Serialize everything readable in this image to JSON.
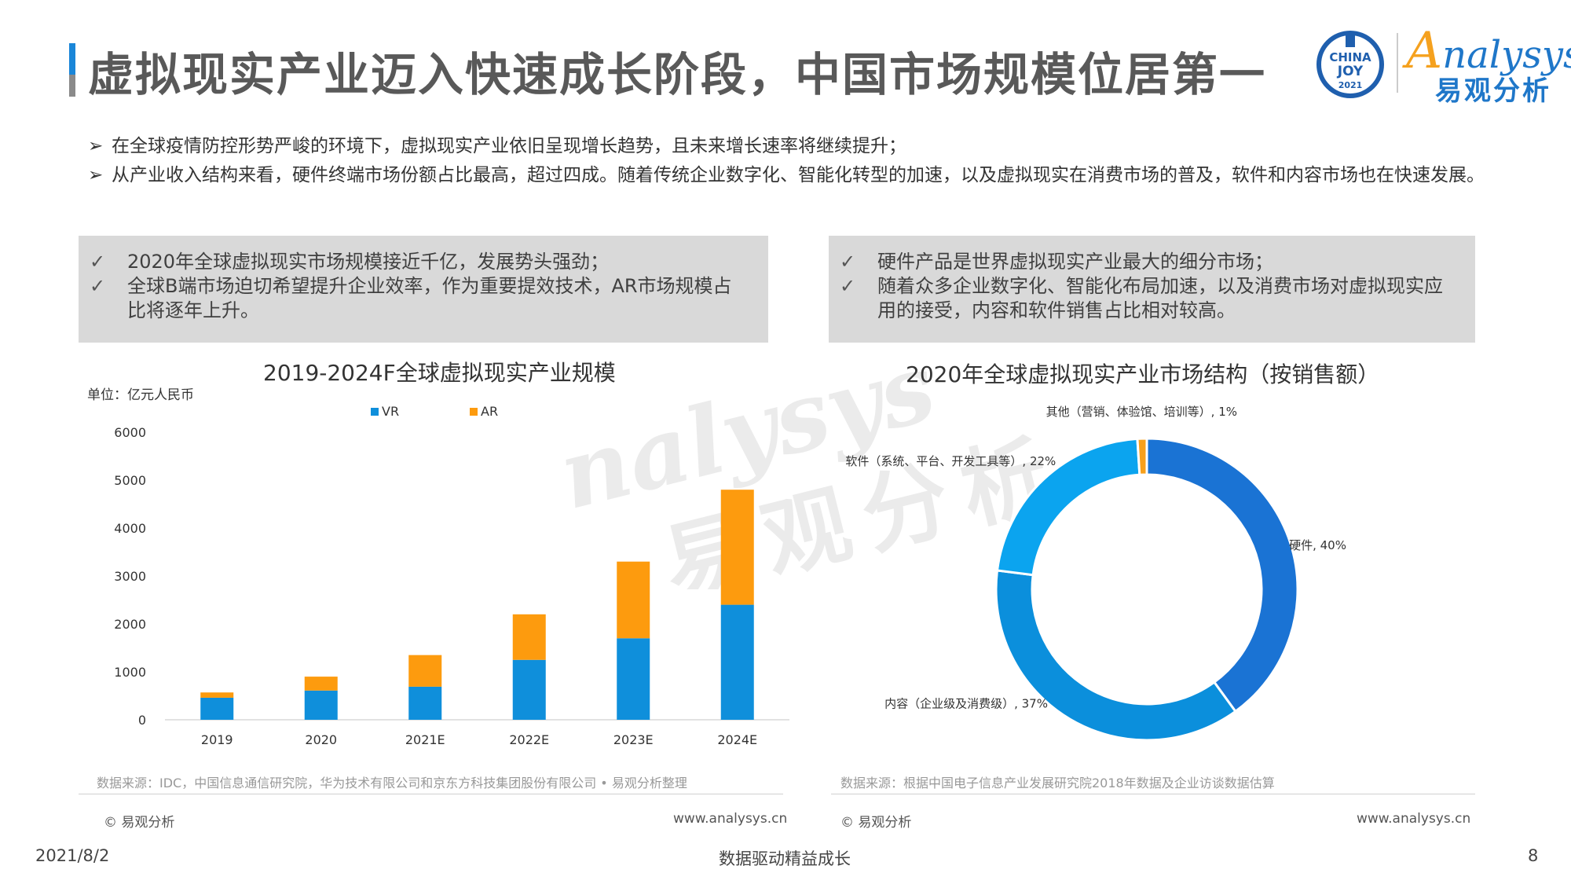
{
  "header": {
    "title": "虚拟现实产业迈入快速成长阶段，中国市场规模位居第一",
    "event_logo": {
      "line1": "CHINA",
      "line2": "JOY",
      "line3": "2021"
    },
    "brand": {
      "name_latin": "nalysys",
      "name_mark": "A",
      "name_cn": "易观分析"
    }
  },
  "bullets": [
    "在全球疫情防控形势严峻的环境下，虚拟现实产业依旧呈现增长趋势，且未来增长速率将继续提升；",
    "从产业收入结构来看，硬件终端市场份额占比最高，超过四成。随着传统企业数字化、智能化转型的加速，以及虚拟现实在消费市场的普及，软件和内容市场也在快速发展。"
  ],
  "left_box": [
    "2020年全球虚拟现实市场规模接近千亿，发展势头强劲；",
    "全球B端市场迫切希望提升企业效率，作为重要提效技术，AR市场规模占比将逐年上升。"
  ],
  "right_box": [
    "硬件产品是世界虚拟现实产业最大的细分市场；",
    "随着众多企业数字化、智能化布局加速，以及消费市场对虚拟现实应用的接受，内容和软件销售占比相对较高。"
  ],
  "chart_data": [
    {
      "type": "bar",
      "stacked": true,
      "title": "2019-2024F全球虚拟现实产业规模",
      "unit_label": "单位：亿元人民币",
      "categories": [
        "2019",
        "2020",
        "2021E",
        "2022E",
        "2023E",
        "2024E"
      ],
      "series": [
        {
          "name": "VR",
          "color": "#0f8fdb",
          "values": [
            460,
            610,
            690,
            1250,
            1700,
            2400
          ]
        },
        {
          "name": "AR",
          "color": "#fd9b0e",
          "values": [
            110,
            290,
            660,
            950,
            1600,
            2400
          ]
        }
      ],
      "yticks": [
        0,
        1000,
        2000,
        3000,
        4000,
        5000,
        6000
      ],
      "ylim": [
        0,
        6000
      ],
      "legend": "top"
    },
    {
      "type": "pie",
      "donut": true,
      "title": "2020年全球虚拟现实产业市场结构（按销售额）",
      "slices": [
        {
          "label": "硬件, 40%",
          "value": 40,
          "color": "#1a73d4"
        },
        {
          "label": "内容（企业级及消费级）, 37%",
          "value": 37,
          "color": "#0b8fdc"
        },
        {
          "label": "软件（系统、平台、开发工具等）, 22%",
          "value": 22,
          "color": "#0ba4ef"
        },
        {
          "label": "其他（营销、体验馆、培训等）, 1%",
          "value": 1,
          "color": "#f7a01c"
        }
      ]
    }
  ],
  "sources": {
    "left": "数据来源：IDC，中国信息通信研究院，华为技术有限公司和京东方科技集团股份有限公司 • 易观分析整理",
    "right": "数据来源：根据中国电子信息产业发展研究院2018年数据及企业访谈数据估算"
  },
  "footers": {
    "copyright": "© 易观分析",
    "website": "www.analysys.cn"
  },
  "bottom": {
    "date": "2021/8/2",
    "slogan": "数据驱动精益成长",
    "page": "8"
  },
  "watermark": {
    "latin": "nalysys",
    "cn": "易观分析"
  }
}
